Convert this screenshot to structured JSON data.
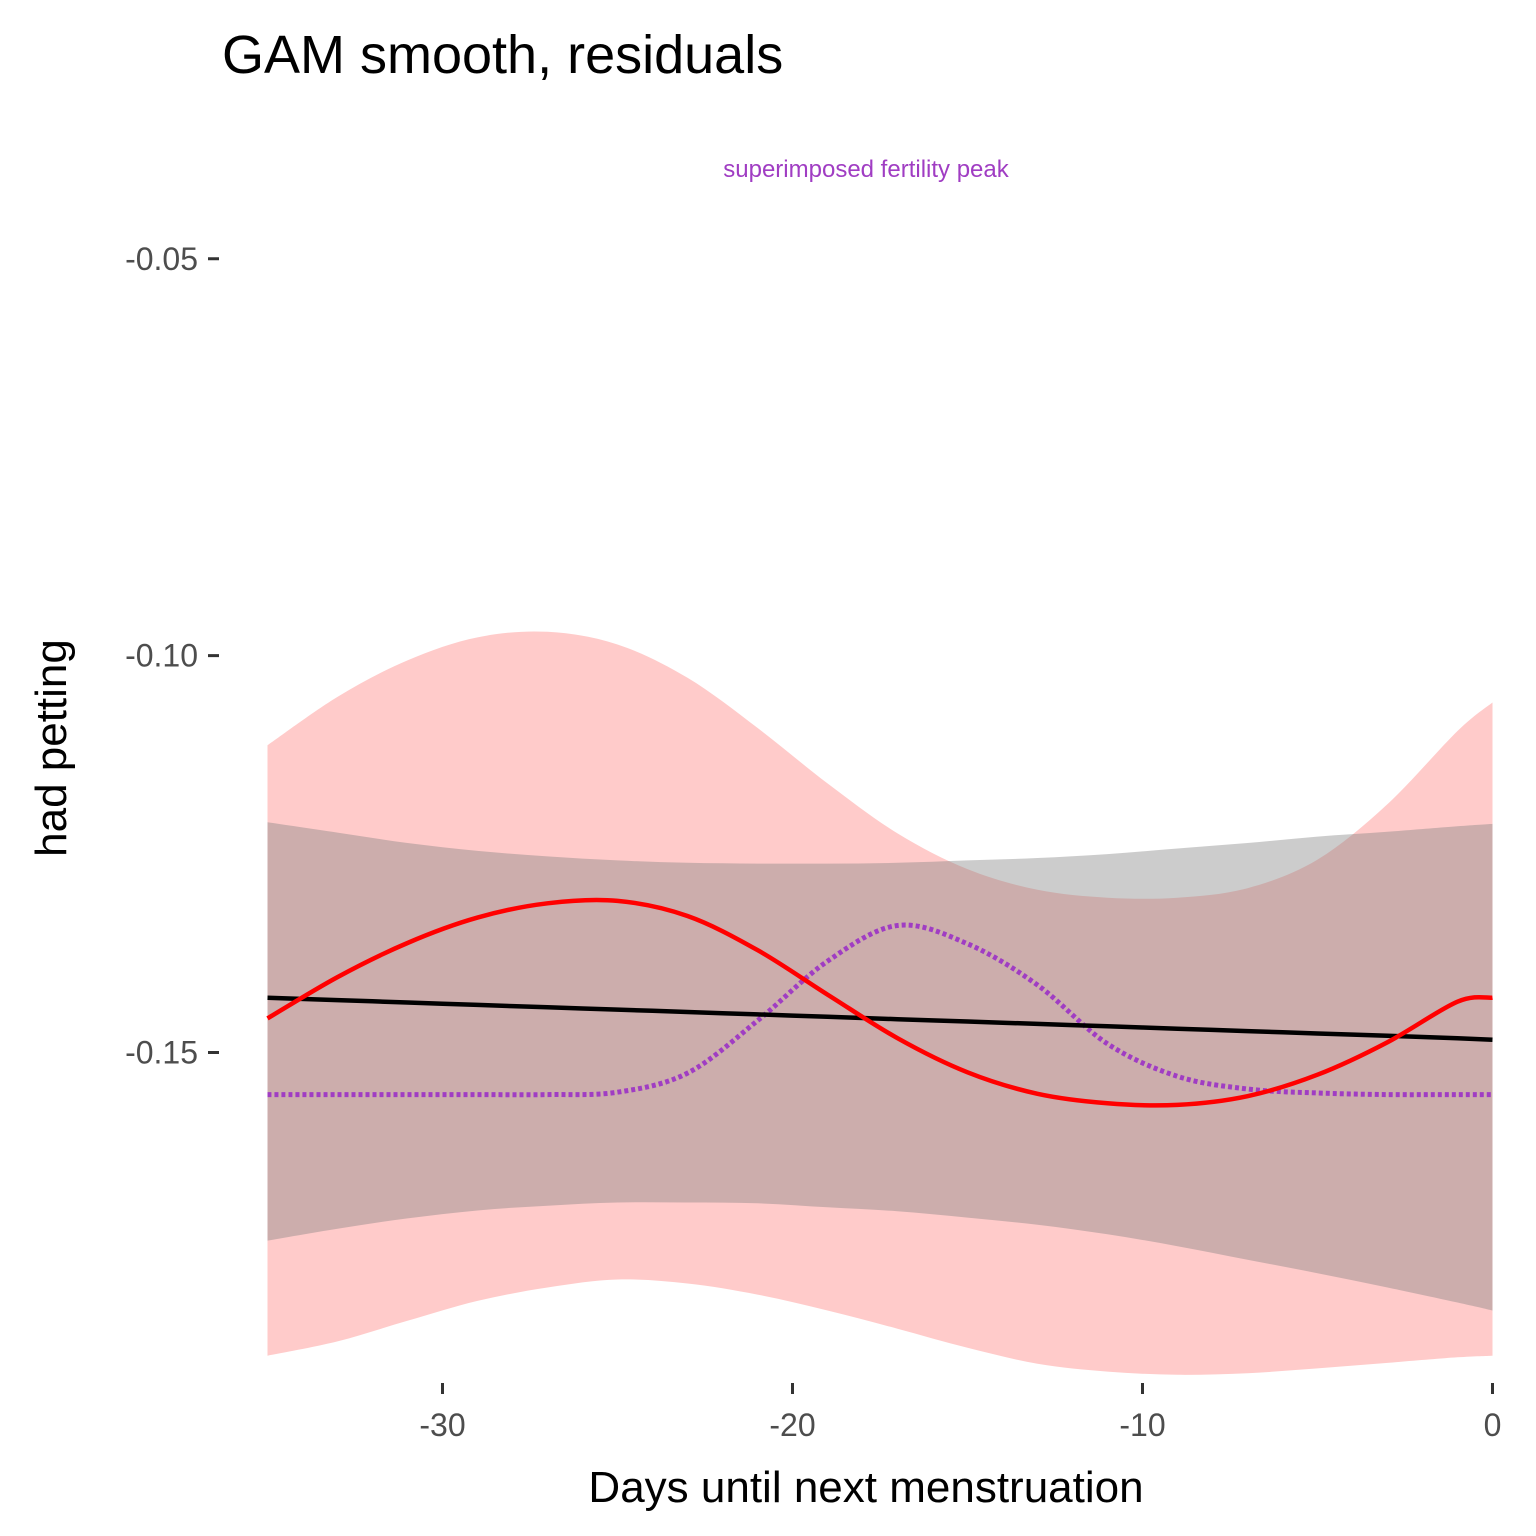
{
  "chart_data": {
    "type": "line",
    "title": "GAM smooth, residuals",
    "annotation": {
      "text": "superimposed fertility peak",
      "color": "#A03DC3"
    },
    "xlabel": "Days until next menstruation",
    "ylabel": "had petting",
    "xlim": [
      -36.3,
      0.5
    ],
    "ylim": [
      -0.19,
      -0.03
    ],
    "xticks": [
      -30,
      -20,
      -10,
      0
    ],
    "xtick_labels": [
      "-30",
      "-20",
      "-10",
      "0"
    ],
    "yticks": [
      -0.05,
      -0.1,
      -0.15
    ],
    "ytick_labels": [
      "-0.05",
      "-0.10",
      "-0.15"
    ],
    "grid": false,
    "x": [
      -35,
      -33,
      -31,
      -29,
      -27,
      -25,
      -23,
      -21,
      -19,
      -17,
      -15,
      -13,
      -11,
      -9,
      -7,
      -5,
      -3,
      -1,
      0
    ],
    "series": [
      {
        "key": "gam_band",
        "kind": "ribbon",
        "color": "#FF9896",
        "opacity": 0.5,
        "upper": [
          -0.1113,
          -0.1052,
          -0.1006,
          -0.0977,
          -0.097,
          -0.0986,
          -0.1028,
          -0.1091,
          -0.1161,
          -0.1224,
          -0.1269,
          -0.1295,
          -0.1305,
          -0.1305,
          -0.1293,
          -0.1257,
          -0.1187,
          -0.1095,
          -0.1059
        ],
        "lower": [
          -0.1882,
          -0.1864,
          -0.1838,
          -0.1813,
          -0.1796,
          -0.1786,
          -0.1791,
          -0.1805,
          -0.1825,
          -0.1848,
          -0.1872,
          -0.1892,
          -0.1902,
          -0.1906,
          -0.1904,
          -0.1898,
          -0.1891,
          -0.1884,
          -0.1882
        ]
      },
      {
        "key": "linear_band",
        "kind": "ribbon",
        "color": "#808080",
        "opacity": 0.4,
        "upper": [
          -0.121,
          -0.1223,
          -0.1236,
          -0.1246,
          -0.1253,
          -0.1258,
          -0.1261,
          -0.1262,
          -0.1262,
          -0.1261,
          -0.1258,
          -0.1255,
          -0.125,
          -0.1243,
          -0.1236,
          -0.1228,
          -0.1222,
          -0.1215,
          -0.1212
        ],
        "lower": [
          -0.1737,
          -0.1722,
          -0.1709,
          -0.1699,
          -0.1693,
          -0.1689,
          -0.1689,
          -0.169,
          -0.1695,
          -0.17,
          -0.1708,
          -0.1717,
          -0.1729,
          -0.1744,
          -0.1761,
          -0.1778,
          -0.1796,
          -0.1815,
          -0.1825
        ]
      },
      {
        "key": "fertility",
        "kind": "dotted-line",
        "color": "#A03DC3",
        "values": [
          -0.1553,
          -0.1553,
          -0.1553,
          -0.1553,
          -0.1553,
          -0.155,
          -0.1526,
          -0.146,
          -0.1385,
          -0.134,
          -0.1363,
          -0.1415,
          -0.1489,
          -0.153,
          -0.1546,
          -0.1551,
          -0.1553,
          -0.1553,
          -0.1553
        ]
      },
      {
        "key": "linear_fit",
        "kind": "line",
        "color": "#000000",
        "values": [
          -0.1431,
          -0.1434,
          -0.1437,
          -0.144,
          -0.1443,
          -0.1446,
          -0.1449,
          -0.1452,
          -0.1455,
          -0.1458,
          -0.1461,
          -0.1464,
          -0.1467,
          -0.147,
          -0.1473,
          -0.1476,
          -0.1479,
          -0.1482,
          -0.1484
        ]
      },
      {
        "key": "gam_fit",
        "kind": "line",
        "color": "#FF0000",
        "values": [
          -0.1457,
          -0.1405,
          -0.1362,
          -0.133,
          -0.1312,
          -0.1309,
          -0.1328,
          -0.1371,
          -0.1427,
          -0.1482,
          -0.1525,
          -0.1552,
          -0.1564,
          -0.1566,
          -0.1555,
          -0.1528,
          -0.1487,
          -0.1436,
          -0.1431
        ]
      }
    ]
  }
}
